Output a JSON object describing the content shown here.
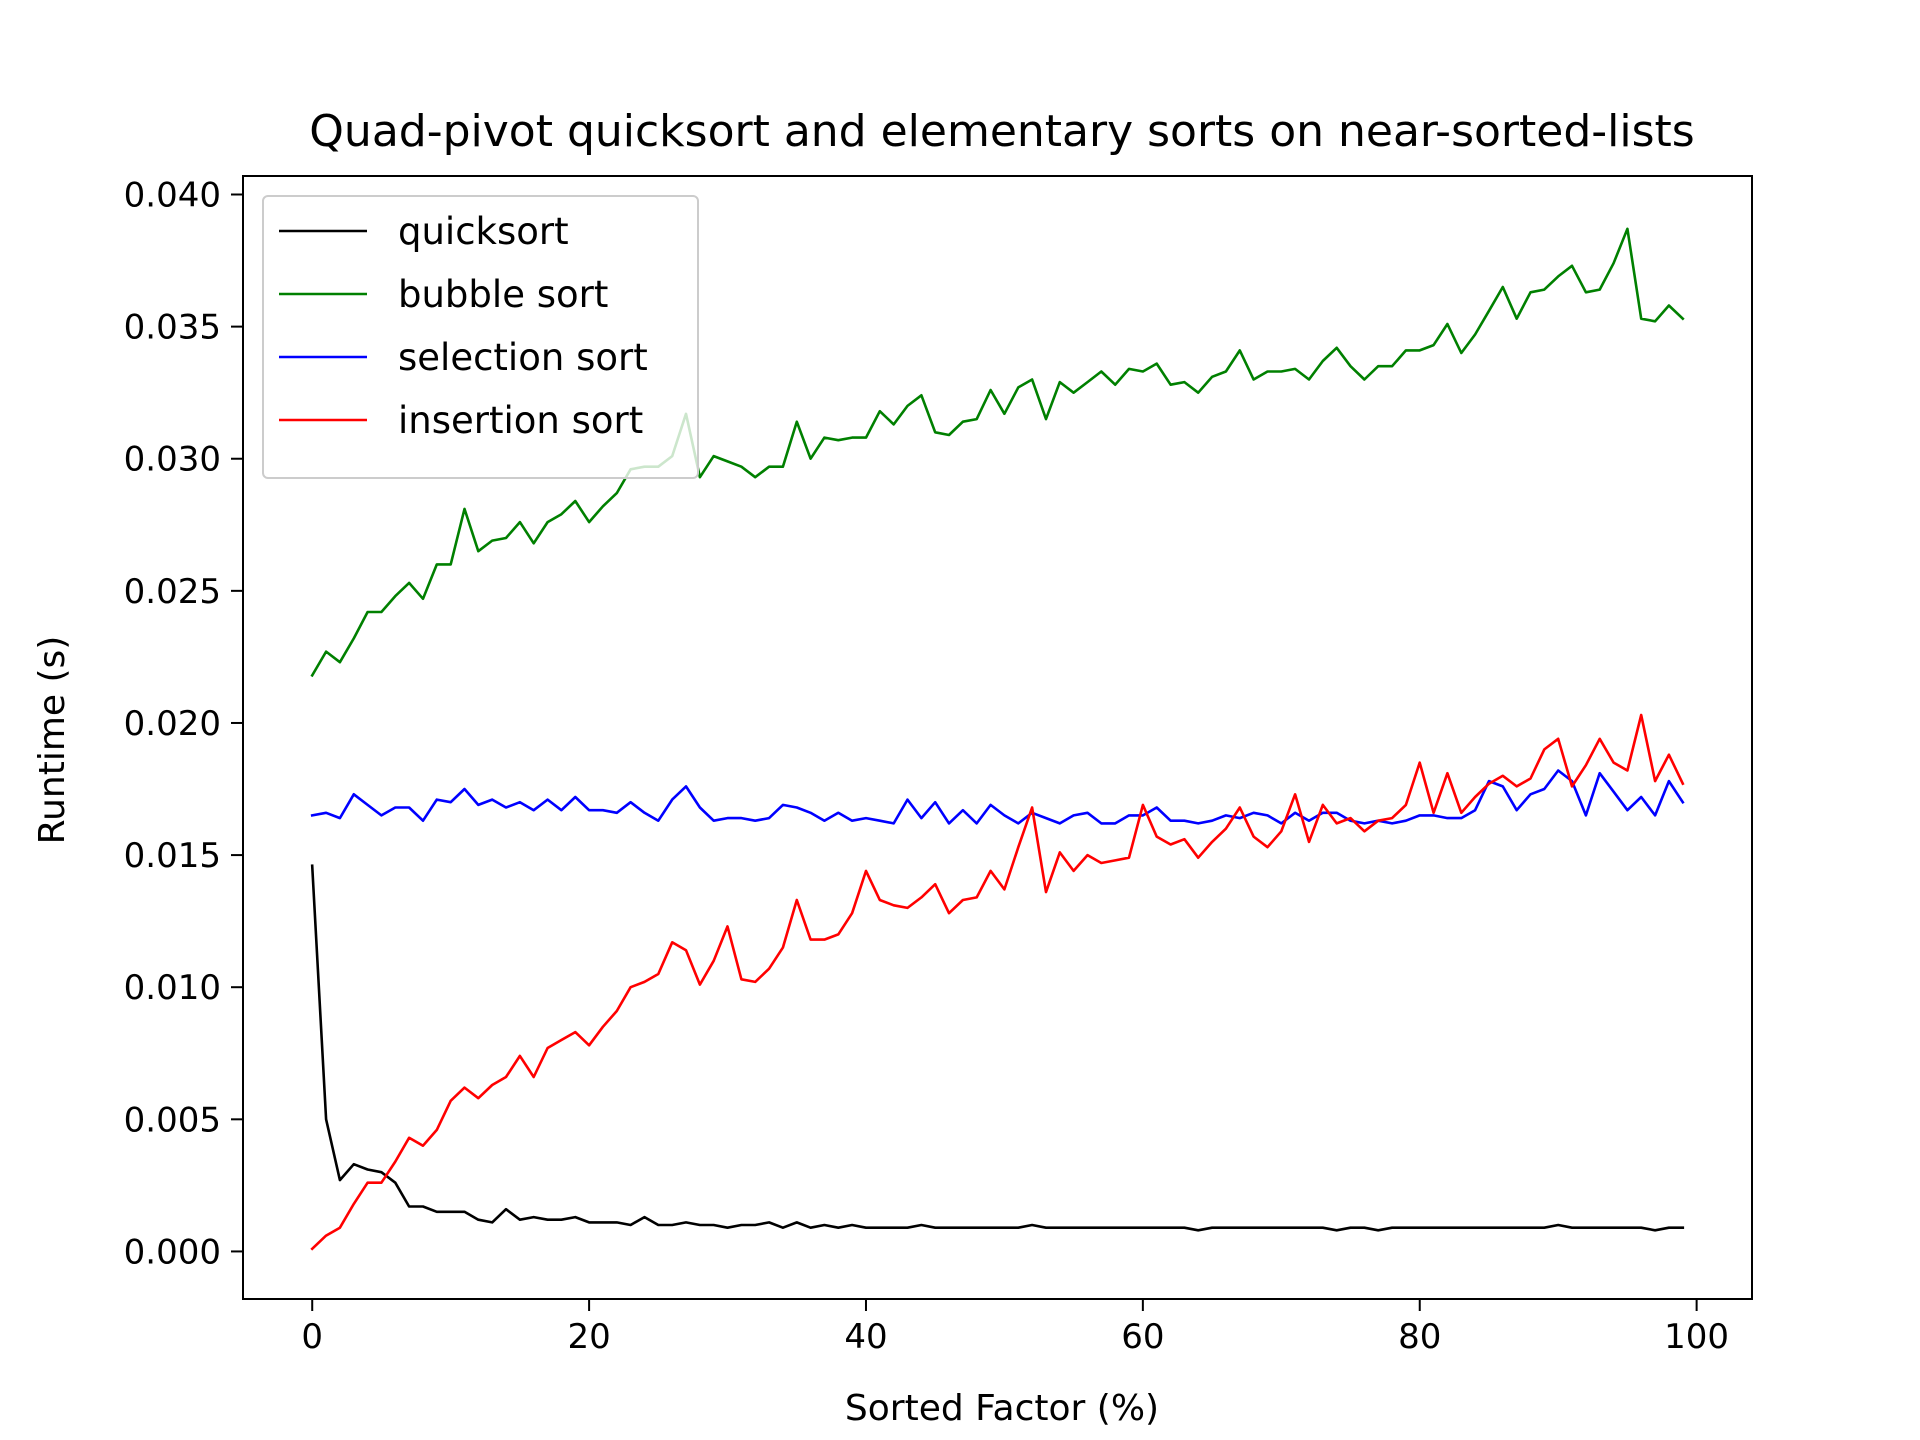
{
  "chart_data": {
    "type": "line",
    "title": "Quad-pivot quicksort and elementary sorts on near-sorted-lists",
    "xlabel": "Sorted Factor (%)",
    "ylabel": "Runtime (s)",
    "xlim": [
      -5,
      104
    ],
    "ylim": [
      -0.0018,
      0.0407
    ],
    "xticks": [
      0,
      20,
      40,
      60,
      80,
      100
    ],
    "xtick_labels": [
      "0",
      "20",
      "40",
      "60",
      "80",
      "100"
    ],
    "yticks": [
      0.0,
      0.005,
      0.01,
      0.015,
      0.02,
      0.025,
      0.03,
      0.035,
      0.04
    ],
    "ytick_labels": [
      "0.000",
      "0.005",
      "0.010",
      "0.015",
      "0.020",
      "0.025",
      "0.030",
      "0.035",
      "0.040"
    ],
    "grid": false,
    "legend_position": "upper-left",
    "x": [
      0,
      1,
      2,
      3,
      4,
      5,
      6,
      7,
      8,
      9,
      10,
      11,
      12,
      13,
      14,
      15,
      16,
      17,
      18,
      19,
      20,
      21,
      22,
      23,
      24,
      25,
      26,
      27,
      28,
      29,
      30,
      31,
      32,
      33,
      34,
      35,
      36,
      37,
      38,
      39,
      40,
      41,
      42,
      43,
      44,
      45,
      46,
      47,
      48,
      49,
      50,
      51,
      52,
      53,
      54,
      55,
      56,
      57,
      58,
      59,
      60,
      61,
      62,
      63,
      64,
      65,
      66,
      67,
      68,
      69,
      70,
      71,
      72,
      73,
      74,
      75,
      76,
      77,
      78,
      79,
      80,
      81,
      82,
      83,
      84,
      85,
      86,
      87,
      88,
      89,
      90,
      91,
      92,
      93,
      94,
      95,
      96,
      97,
      98,
      99
    ],
    "series": [
      {
        "name": "quicksort",
        "color": "#000000",
        "values": [
          0.0146,
          0.005,
          0.0027,
          0.0033,
          0.0031,
          0.003,
          0.0026,
          0.0017,
          0.0017,
          0.0015,
          0.0015,
          0.0015,
          0.0012,
          0.0011,
          0.0016,
          0.0012,
          0.0013,
          0.0012,
          0.0012,
          0.0013,
          0.0011,
          0.0011,
          0.0011,
          0.001,
          0.0013,
          0.001,
          0.001,
          0.0011,
          0.001,
          0.001,
          0.0009,
          0.001,
          0.001,
          0.0011,
          0.0009,
          0.0011,
          0.0009,
          0.001,
          0.0009,
          0.001,
          0.0009,
          0.0009,
          0.0009,
          0.0009,
          0.001,
          0.0009,
          0.0009,
          0.0009,
          0.0009,
          0.0009,
          0.0009,
          0.0009,
          0.001,
          0.0009,
          0.0009,
          0.0009,
          0.0009,
          0.0009,
          0.0009,
          0.0009,
          0.0009,
          0.0009,
          0.0009,
          0.0009,
          0.0008,
          0.0009,
          0.0009,
          0.0009,
          0.0009,
          0.0009,
          0.0009,
          0.0009,
          0.0009,
          0.0009,
          0.0008,
          0.0009,
          0.0009,
          0.0008,
          0.0009,
          0.0009,
          0.0009,
          0.0009,
          0.0009,
          0.0009,
          0.0009,
          0.0009,
          0.0009,
          0.0009,
          0.0009,
          0.0009,
          0.001,
          0.0009,
          0.0009,
          0.0009,
          0.0009,
          0.0009,
          0.0009,
          0.0008,
          0.0009,
          0.0009
        ]
      },
      {
        "name": "bubble sort",
        "color": "#008000",
        "values": [
          0.0218,
          0.0227,
          0.0223,
          0.0232,
          0.0242,
          0.0242,
          0.0248,
          0.0253,
          0.0247,
          0.026,
          0.026,
          0.0281,
          0.0265,
          0.0269,
          0.027,
          0.0276,
          0.0268,
          0.0276,
          0.0279,
          0.0284,
          0.0276,
          0.0282,
          0.0287,
          0.0296,
          0.0297,
          0.0297,
          0.0301,
          0.0317,
          0.0293,
          0.0301,
          0.0299,
          0.0297,
          0.0293,
          0.0297,
          0.0297,
          0.0314,
          0.03,
          0.0308,
          0.0307,
          0.0308,
          0.0308,
          0.0318,
          0.0313,
          0.032,
          0.0324,
          0.031,
          0.0309,
          0.0314,
          0.0315,
          0.0326,
          0.0317,
          0.0327,
          0.033,
          0.0315,
          0.0329,
          0.0325,
          0.0329,
          0.0333,
          0.0328,
          0.0334,
          0.0333,
          0.0336,
          0.0328,
          0.0329,
          0.0325,
          0.0331,
          0.0333,
          0.0341,
          0.033,
          0.0333,
          0.0333,
          0.0334,
          0.033,
          0.0337,
          0.0342,
          0.0335,
          0.033,
          0.0335,
          0.0335,
          0.0341,
          0.0341,
          0.0343,
          0.0351,
          0.034,
          0.0347,
          0.0356,
          0.0365,
          0.0353,
          0.0363,
          0.0364,
          0.0369,
          0.0373,
          0.0363,
          0.0364,
          0.0374,
          0.0387,
          0.0353,
          0.0352,
          0.0358,
          0.0353
        ]
      },
      {
        "name": "selection sort",
        "color": "#0000ff",
        "values": [
          0.0165,
          0.0166,
          0.0164,
          0.0173,
          0.0169,
          0.0165,
          0.0168,
          0.0168,
          0.0163,
          0.0171,
          0.017,
          0.0175,
          0.0169,
          0.0171,
          0.0168,
          0.017,
          0.0167,
          0.0171,
          0.0167,
          0.0172,
          0.0167,
          0.0167,
          0.0166,
          0.017,
          0.0166,
          0.0163,
          0.0171,
          0.0176,
          0.0168,
          0.0163,
          0.0164,
          0.0164,
          0.0163,
          0.0164,
          0.0169,
          0.0168,
          0.0166,
          0.0163,
          0.0166,
          0.0163,
          0.0164,
          0.0163,
          0.0162,
          0.0171,
          0.0164,
          0.017,
          0.0162,
          0.0167,
          0.0162,
          0.0169,
          0.0165,
          0.0162,
          0.0166,
          0.0164,
          0.0162,
          0.0165,
          0.0166,
          0.0162,
          0.0162,
          0.0165,
          0.0165,
          0.0168,
          0.0163,
          0.0163,
          0.0162,
          0.0163,
          0.0165,
          0.0164,
          0.0166,
          0.0165,
          0.0162,
          0.0166,
          0.0163,
          0.0166,
          0.0166,
          0.0163,
          0.0162,
          0.0163,
          0.0162,
          0.0163,
          0.0165,
          0.0165,
          0.0164,
          0.0164,
          0.0167,
          0.0178,
          0.0176,
          0.0167,
          0.0173,
          0.0175,
          0.0182,
          0.0178,
          0.0165,
          0.0181,
          0.0174,
          0.0167,
          0.0172,
          0.0165,
          0.0178,
          0.017
        ]
      },
      {
        "name": "insertion sort",
        "color": "#ff0000",
        "values": [
          0.0001,
          0.0006,
          0.0009,
          0.0018,
          0.0026,
          0.0026,
          0.0034,
          0.0043,
          0.004,
          0.0046,
          0.0057,
          0.0062,
          0.0058,
          0.0063,
          0.0066,
          0.0074,
          0.0066,
          0.0077,
          0.008,
          0.0083,
          0.0078,
          0.0085,
          0.0091,
          0.01,
          0.0102,
          0.0105,
          0.0117,
          0.0114,
          0.0101,
          0.011,
          0.0123,
          0.0103,
          0.0102,
          0.0107,
          0.0115,
          0.0133,
          0.0118,
          0.0118,
          0.012,
          0.0128,
          0.0144,
          0.0133,
          0.0131,
          0.013,
          0.0134,
          0.0139,
          0.0128,
          0.0133,
          0.0134,
          0.0144,
          0.0137,
          0.0153,
          0.0168,
          0.0136,
          0.0151,
          0.0144,
          0.015,
          0.0147,
          0.0148,
          0.0149,
          0.0169,
          0.0157,
          0.0154,
          0.0156,
          0.0149,
          0.0155,
          0.016,
          0.0168,
          0.0157,
          0.0153,
          0.0159,
          0.0173,
          0.0155,
          0.0169,
          0.0162,
          0.0164,
          0.0159,
          0.0163,
          0.0164,
          0.0169,
          0.0185,
          0.0166,
          0.0181,
          0.0166,
          0.0172,
          0.0177,
          0.018,
          0.0176,
          0.0179,
          0.019,
          0.0194,
          0.0176,
          0.0184,
          0.0194,
          0.0185,
          0.0182,
          0.0203,
          0.0178,
          0.0188,
          0.0177
        ]
      }
    ]
  }
}
